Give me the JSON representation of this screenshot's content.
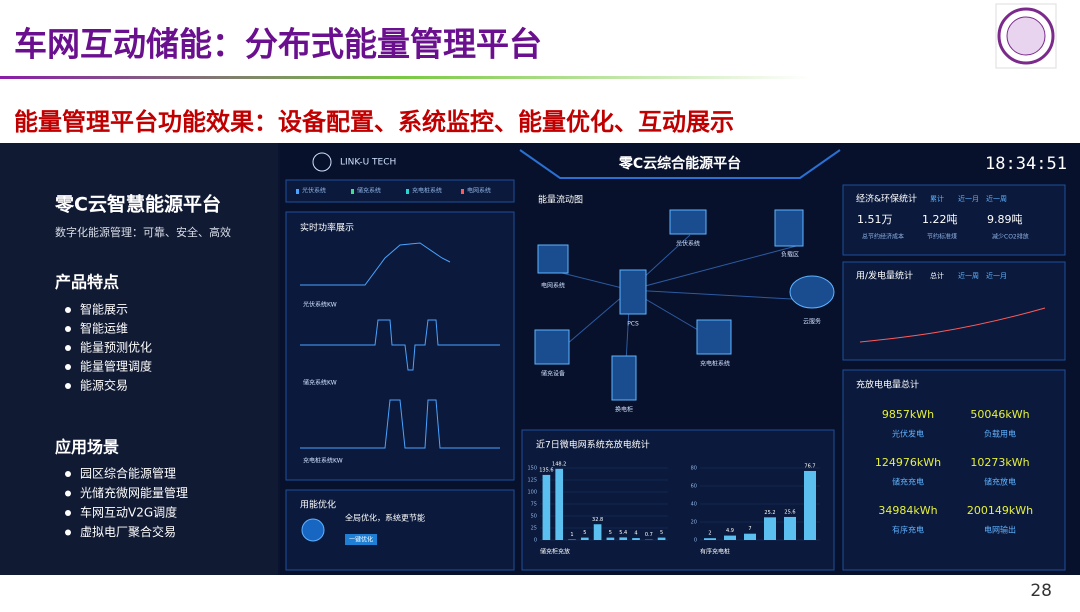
{
  "header": {
    "title": "车网互动储能：分布式能量管理平台",
    "subtitle": "能量管理平台功能效果：设备配置、系统监控、能量优化、互动展示"
  },
  "sidebar": {
    "title": "零C云智慧能源平台",
    "tagline": "数字化能源管理：可靠、安全、高效",
    "features_heading": "产品特点",
    "features": [
      "智能展示",
      "智能运维",
      "能量预测优化",
      "能量管理调度",
      "能源交易"
    ],
    "scenarios_heading": "应用场景",
    "scenarios": [
      "园区综合能源管理",
      "光储充微网能量管理",
      "车网互动V2G调度",
      "虚拟电厂聚合交易"
    ]
  },
  "dashboard": {
    "brand": "LINK-U TECH",
    "title": "零C云综合能源平台",
    "clock": "18:34:51",
    "legend": [
      "光伏系统",
      "储充系统",
      "充电桩系统",
      "电网系统"
    ],
    "realtime_title": "实时功率展示",
    "power_charts": [
      "光伏系统KW",
      "储充系统KW",
      "充电桩系统KW"
    ],
    "flow_title": "能量流动图",
    "nodes": [
      "电网系统",
      "光伏系统",
      "负载区",
      "云服务",
      "PCS",
      "储充设备",
      "充电桩系统",
      "换电柜"
    ],
    "economy": {
      "title": "经济&环保统计",
      "tabs": [
        "累计",
        "近一月",
        "近一周"
      ],
      "stats": [
        {
          "value": "1.51万",
          "label": "总节约经济成本"
        },
        {
          "value": "1.22吨",
          "label": "节约标准煤"
        },
        {
          "value": "9.89吨",
          "label": "减少CO2排放"
        }
      ]
    },
    "usage": {
      "title": "用/发电量统计",
      "tabs": [
        "总计",
        "近一周",
        "近一月"
      ]
    },
    "totals": {
      "title": "充放电电量总计",
      "items": [
        {
          "value": "9857kWh",
          "label": "光伏发电"
        },
        {
          "value": "50046kWh",
          "label": "负载用电"
        },
        {
          "value": "124976kWh",
          "label": "储充充电"
        },
        {
          "value": "10273kWh",
          "label": "储充放电"
        },
        {
          "value": "34984kWh",
          "label": "有序充电"
        },
        {
          "value": "200149kWh",
          "label": "电网输出"
        }
      ]
    },
    "weekly": {
      "title": "近7日微电网系统充放电统计",
      "left": {
        "name": "储充柜充放",
        "values": [
          135.6,
          148.2,
          1,
          5,
          32.8,
          5,
          5.4,
          4,
          0.7,
          5
        ],
        "ylim": [
          0,
          150
        ],
        "yticks": [
          0,
          25,
          50,
          75,
          100,
          125,
          150
        ]
      },
      "right": {
        "name": "有序充电桩",
        "values": [
          2,
          4.9,
          7,
          25.2,
          25.6,
          76.7
        ],
        "ylim": [
          0,
          80
        ],
        "yticks": [
          0,
          20,
          40,
          60,
          80
        ]
      }
    },
    "optimize": {
      "title": "用能优化",
      "text": "全局优化，系统更节能",
      "button": "一键优化"
    }
  },
  "page_number": "28"
}
